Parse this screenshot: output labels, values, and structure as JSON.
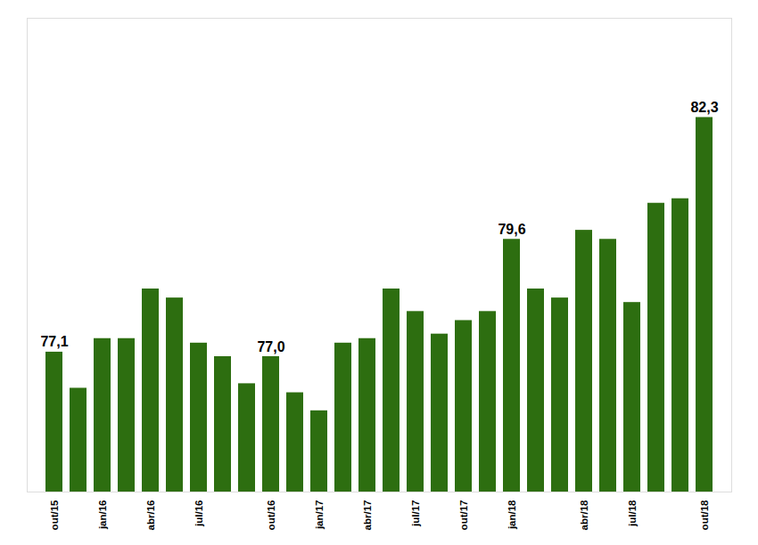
{
  "chart_data": {
    "type": "bar",
    "categories": [
      "out/15",
      null,
      "jan/16",
      null,
      "abr/16",
      null,
      "jul/16",
      null,
      null,
      "out/16",
      null,
      "jan/17",
      null,
      "abr/17",
      null,
      "jul/17",
      null,
      "out/17",
      null,
      "jan/18",
      null,
      null,
      "abr/18",
      null,
      "jul/18",
      null,
      null,
      "out/18"
    ],
    "values": [
      77.1,
      76.3,
      77.4,
      77.4,
      78.5,
      78.3,
      77.3,
      77.0,
      76.4,
      77.0,
      76.2,
      75.8,
      77.3,
      77.4,
      78.5,
      78.0,
      77.5,
      77.8,
      78.0,
      79.6,
      78.5,
      78.3,
      79.8,
      79.6,
      78.2,
      80.4,
      80.5,
      82.3
    ],
    "value_labels": [
      "77,1",
      null,
      null,
      null,
      null,
      null,
      null,
      null,
      null,
      "77,0",
      null,
      null,
      null,
      null,
      null,
      null,
      null,
      null,
      null,
      "79,6",
      null,
      null,
      null,
      null,
      null,
      null,
      null,
      "82,3"
    ],
    "data_labels": true,
    "color": "#2d6e10",
    "ylim": [
      74.0,
      84.5
    ],
    "grid": false,
    "tick_labels": "x"
  }
}
